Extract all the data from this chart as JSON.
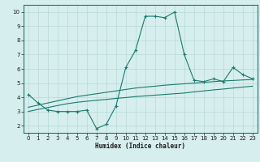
{
  "xlabel": "Humidex (Indice chaleur)",
  "ylabel": "",
  "background_color": "#d6eeee",
  "grid_color": "#b8d8d8",
  "line_color": "#1a7a6e",
  "xlim": [
    -0.5,
    23.5
  ],
  "ylim": [
    1.5,
    10.5
  ],
  "xticks": [
    0,
    1,
    2,
    3,
    4,
    5,
    6,
    7,
    8,
    9,
    10,
    11,
    12,
    13,
    14,
    15,
    16,
    17,
    18,
    19,
    20,
    21,
    22,
    23
  ],
  "yticks": [
    2,
    3,
    4,
    5,
    6,
    7,
    8,
    9,
    10
  ],
  "main_y": [
    4.2,
    3.6,
    3.1,
    3.0,
    3.0,
    3.0,
    3.1,
    1.8,
    2.1,
    3.4,
    6.1,
    7.3,
    9.7,
    9.7,
    9.6,
    10.0,
    7.0,
    5.2,
    5.1,
    5.3,
    5.1,
    6.1,
    5.6,
    5.3
  ],
  "trend1_y": [
    3.3,
    3.45,
    3.6,
    3.75,
    3.9,
    4.05,
    4.15,
    4.25,
    4.35,
    4.45,
    4.55,
    4.65,
    4.72,
    4.78,
    4.85,
    4.9,
    4.95,
    5.0,
    5.05,
    5.1,
    5.15,
    5.18,
    5.22,
    5.25
  ],
  "trend2_y": [
    3.0,
    3.15,
    3.28,
    3.42,
    3.55,
    3.65,
    3.72,
    3.79,
    3.85,
    3.92,
    3.98,
    4.05,
    4.1,
    4.15,
    4.2,
    4.25,
    4.3,
    4.38,
    4.45,
    4.52,
    4.58,
    4.65,
    4.72,
    4.78
  ]
}
